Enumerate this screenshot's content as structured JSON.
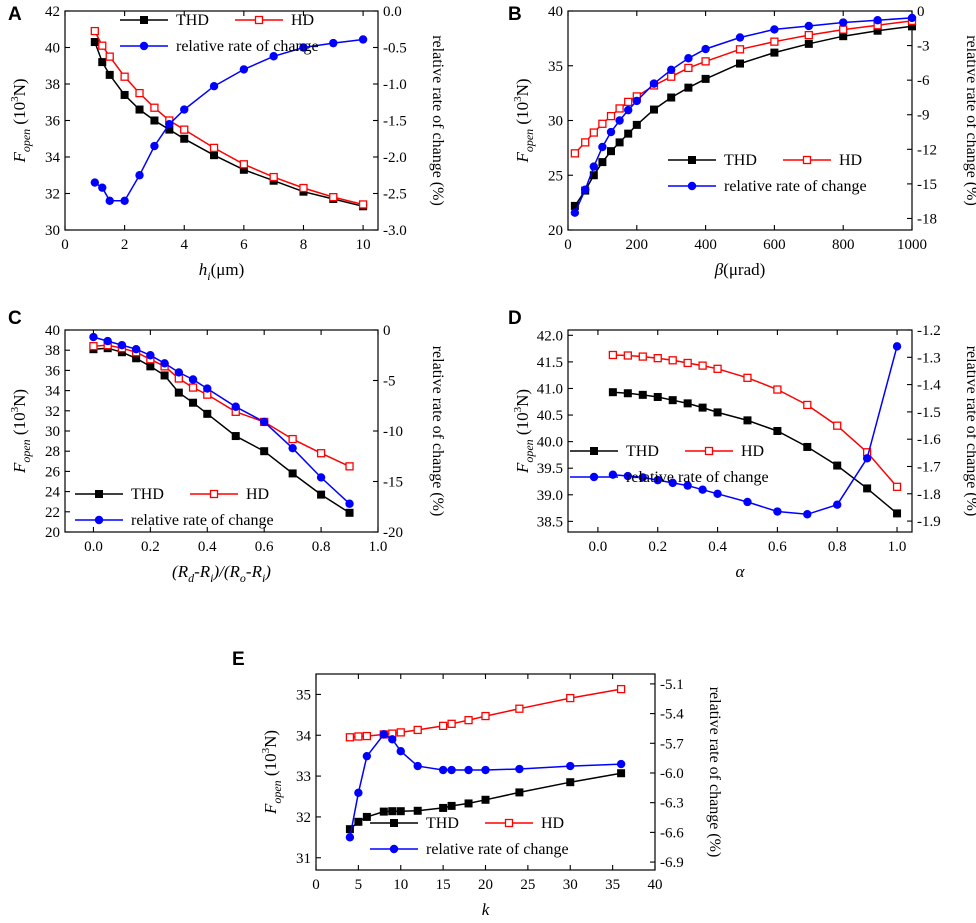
{
  "figure": {
    "colors": {
      "thd": "#000000",
      "hd": "#ff0000",
      "rate": "#0000ff",
      "axis": "#000000"
    },
    "ylabel_left": {
      "main": "F",
      "sub": "open",
      "pre": "(10",
      "sup": "3",
      "post": "N)"
    },
    "ylabel_right": "relative rate of change (%)"
  },
  "chart_data": [
    {
      "panel": "A",
      "type": "line",
      "xlabel": {
        "main": "h",
        "sub": "i",
        "post": "(μm)"
      },
      "xlim": [
        0,
        10.5
      ],
      "xticks": [
        0,
        2,
        4,
        6,
        8,
        10
      ],
      "ylim": [
        30,
        42
      ],
      "yticks": [
        30,
        32,
        34,
        36,
        38,
        40,
        42
      ],
      "y2lim": [
        -3.0,
        0.0
      ],
      "y2ticks": [
        "-3.0",
        "-2.5",
        "-2.0",
        "-1.5",
        "-1.0",
        "-0.5",
        "0.0"
      ],
      "legend": [
        {
          "key": "thd",
          "label": "THD"
        },
        {
          "key": "hd",
          "label": "HD"
        },
        {
          "key": "rate",
          "label": "relative rate of change"
        }
      ],
      "series": [
        {
          "key": "thd",
          "axis": "left",
          "x": [
            1,
            1.25,
            1.5,
            2,
            2.5,
            3,
            3.5,
            4,
            5,
            6,
            7,
            8,
            9,
            10
          ],
          "values": [
            40.3,
            39.2,
            38.5,
            37.4,
            36.6,
            36.0,
            35.5,
            35.0,
            34.1,
            33.3,
            32.7,
            32.1,
            31.7,
            31.3
          ]
        },
        {
          "key": "hd",
          "axis": "left",
          "x": [
            1,
            1.25,
            1.5,
            2,
            2.5,
            3,
            3.5,
            4,
            5,
            6,
            7,
            8,
            9,
            10
          ],
          "values": [
            40.9,
            40.1,
            39.5,
            38.4,
            37.5,
            36.7,
            36.0,
            35.5,
            34.5,
            33.6,
            32.9,
            32.3,
            31.8,
            31.4
          ]
        },
        {
          "key": "rate",
          "axis": "right",
          "x": [
            1,
            1.25,
            1.5,
            2,
            2.5,
            3,
            3.5,
            4,
            5,
            6,
            7,
            8,
            9,
            10
          ],
          "values": [
            -2.35,
            -2.42,
            -2.6,
            -2.6,
            -2.25,
            -1.85,
            -1.55,
            -1.35,
            -1.03,
            -0.8,
            -0.62,
            -0.5,
            -0.44,
            -0.39
          ]
        }
      ]
    },
    {
      "panel": "B",
      "type": "line",
      "xlabel": {
        "main": "β",
        "sub": "",
        "post": "(μrad)"
      },
      "xlim": [
        0,
        1000
      ],
      "xticks": [
        0,
        200,
        400,
        600,
        800,
        1000
      ],
      "ylim": [
        20,
        40
      ],
      "yticks": [
        20,
        25,
        30,
        35,
        40
      ],
      "y2lim": [
        -19,
        0
      ],
      "y2ticks": [
        "-18",
        "-15",
        "-12",
        "-9",
        "-6",
        "-3",
        "0"
      ],
      "legend": [
        {
          "key": "thd",
          "label": "THD"
        },
        {
          "key": "hd",
          "label": "HD"
        },
        {
          "key": "rate",
          "label": "relative rate of change"
        }
      ],
      "series": [
        {
          "key": "thd",
          "axis": "left",
          "x": [
            20,
            50,
            75,
            100,
            125,
            150,
            175,
            200,
            250,
            300,
            350,
            400,
            500,
            600,
            700,
            800,
            900,
            1000
          ],
          "values": [
            22.2,
            23.6,
            25.0,
            26.2,
            27.2,
            28.0,
            28.8,
            29.6,
            31.0,
            32.1,
            33.0,
            33.8,
            35.2,
            36.2,
            37.0,
            37.7,
            38.2,
            38.6
          ]
        },
        {
          "key": "hd",
          "axis": "left",
          "x": [
            20,
            50,
            75,
            100,
            125,
            150,
            175,
            200,
            250,
            300,
            350,
            400,
            500,
            600,
            700,
            800,
            900,
            1000
          ],
          "values": [
            27.0,
            28.0,
            28.9,
            29.7,
            30.4,
            31.1,
            31.7,
            32.2,
            33.2,
            34.0,
            34.8,
            35.4,
            36.5,
            37.2,
            37.8,
            38.3,
            38.7,
            39.1
          ]
        },
        {
          "key": "rate",
          "axis": "right",
          "x": [
            20,
            50,
            75,
            100,
            125,
            150,
            175,
            200,
            250,
            300,
            350,
            400,
            500,
            600,
            700,
            800,
            900,
            1000
          ],
          "values": [
            -17.5,
            -15.5,
            -13.5,
            -11.8,
            -10.5,
            -9.5,
            -8.6,
            -7.8,
            -6.3,
            -5.1,
            -4.1,
            -3.3,
            -2.3,
            -1.6,
            -1.3,
            -1.0,
            -0.8,
            -0.6
          ]
        }
      ]
    },
    {
      "panel": "C",
      "type": "line",
      "xlabel": {
        "parts": [
          "(R",
          "d",
          "-R",
          "i",
          ")/(R",
          "o",
          "-R",
          "i",
          ")"
        ]
      },
      "xlim": [
        -0.1,
        1.0
      ],
      "xticks": [
        "0.0",
        "0.2",
        "0.4",
        "0.6",
        "0.8",
        "1.0"
      ],
      "ylim": [
        20,
        40
      ],
      "yticks": [
        20,
        22,
        24,
        26,
        28,
        30,
        32,
        34,
        36,
        38,
        40
      ],
      "y2lim": [
        -20,
        0
      ],
      "y2ticks": [
        "-20",
        "-15",
        "-10",
        "-5",
        "0"
      ],
      "legend": [
        {
          "key": "thd",
          "label": "THD"
        },
        {
          "key": "hd",
          "label": "HD"
        },
        {
          "key": "rate",
          "label": "relative rate of change"
        }
      ],
      "series": [
        {
          "key": "thd",
          "axis": "left",
          "x": [
            0,
            0.05,
            0.1,
            0.15,
            0.2,
            0.25,
            0.3,
            0.35,
            0.4,
            0.5,
            0.6,
            0.7,
            0.8,
            0.9
          ],
          "values": [
            38.1,
            38.2,
            37.8,
            37.2,
            36.4,
            35.5,
            33.8,
            32.8,
            31.7,
            29.5,
            28.0,
            25.8,
            23.7,
            21.9
          ]
        },
        {
          "key": "hd",
          "axis": "left",
          "x": [
            0,
            0.05,
            0.1,
            0.15,
            0.2,
            0.25,
            0.3,
            0.35,
            0.4,
            0.5,
            0.6,
            0.7,
            0.8,
            0.9
          ],
          "values": [
            38.4,
            38.5,
            38.2,
            37.8,
            37.1,
            36.4,
            35.2,
            34.3,
            33.6,
            31.9,
            30.9,
            29.2,
            27.8,
            26.5
          ]
        },
        {
          "key": "rate",
          "axis": "right",
          "x": [
            0,
            0.05,
            0.1,
            0.15,
            0.2,
            0.25,
            0.3,
            0.35,
            0.4,
            0.5,
            0.6,
            0.7,
            0.8,
            0.9
          ],
          "values": [
            -0.7,
            -1.1,
            -1.5,
            -1.9,
            -2.5,
            -3.3,
            -4.2,
            -4.9,
            -5.8,
            -7.6,
            -9.1,
            -11.7,
            -14.6,
            -17.2
          ]
        }
      ]
    },
    {
      "panel": "D",
      "type": "line",
      "xlabel": {
        "main": "α",
        "sub": "",
        "post": ""
      },
      "xlim": [
        -0.1,
        1.05
      ],
      "xticks": [
        "0.0",
        "0.2",
        "0.4",
        "0.6",
        "0.8",
        "1.0"
      ],
      "ylim": [
        38.3,
        42.1
      ],
      "yticks": [
        "38.5",
        "39.0",
        "39.5",
        "40.0",
        "40.5",
        "41.0",
        "41.5",
        "42.0"
      ],
      "y2lim": [
        -1.94,
        -1.2
      ],
      "y2ticks": [
        "-1.9",
        "-1.8",
        "-1.7",
        "-1.6",
        "-1.5",
        "-1.4",
        "-1.3",
        "-1.2"
      ],
      "legend": [
        {
          "key": "thd",
          "label": "THD"
        },
        {
          "key": "hd",
          "label": "HD"
        },
        {
          "key": "rate",
          "label": "relative rate of change"
        }
      ],
      "series": [
        {
          "key": "thd",
          "axis": "left",
          "x": [
            0.05,
            0.1,
            0.15,
            0.2,
            0.25,
            0.3,
            0.35,
            0.4,
            0.5,
            0.6,
            0.7,
            0.8,
            0.9,
            1.0
          ],
          "values": [
            40.93,
            40.91,
            40.88,
            40.84,
            40.78,
            40.72,
            40.64,
            40.55,
            40.4,
            40.2,
            39.9,
            39.55,
            39.12,
            38.65
          ]
        },
        {
          "key": "hd",
          "axis": "left",
          "x": [
            0.05,
            0.1,
            0.15,
            0.2,
            0.25,
            0.3,
            0.35,
            0.4,
            0.5,
            0.6,
            0.7,
            0.8,
            0.9,
            1.0
          ],
          "values": [
            41.63,
            41.62,
            41.6,
            41.57,
            41.53,
            41.48,
            41.43,
            41.37,
            41.2,
            40.98,
            40.69,
            40.3,
            39.8,
            39.15
          ]
        },
        {
          "key": "rate",
          "axis": "right",
          "x": [
            0.05,
            0.1,
            0.15,
            0.2,
            0.25,
            0.3,
            0.35,
            0.4,
            0.5,
            0.6,
            0.7,
            0.8,
            0.9,
            1.0
          ],
          "values": [
            -1.73,
            -1.735,
            -1.74,
            -1.75,
            -1.76,
            -1.77,
            -1.785,
            -1.8,
            -1.83,
            -1.865,
            -1.875,
            -1.84,
            -1.67,
            -1.26
          ]
        }
      ]
    },
    {
      "panel": "E",
      "type": "line",
      "xlabel": {
        "main": "k",
        "sub": "",
        "post": ""
      },
      "xlim": [
        0,
        40
      ],
      "xticks": [
        0,
        5,
        10,
        15,
        20,
        25,
        30,
        35,
        40
      ],
      "ylim": [
        30.7,
        35.5
      ],
      "yticks": [
        31,
        32,
        33,
        34,
        35
      ],
      "y2lim": [
        -6.98,
        -5.0
      ],
      "y2ticks": [
        "-6.9",
        "-6.6",
        "-6.3",
        "-6.0",
        "-5.7",
        "-5.4",
        "-5.1"
      ],
      "legend": [
        {
          "key": "thd",
          "label": "THD"
        },
        {
          "key": "hd",
          "label": "HD"
        },
        {
          "key": "rate",
          "label": "relative rate of change"
        }
      ],
      "series": [
        {
          "key": "thd",
          "axis": "left",
          "x": [
            4,
            5,
            6,
            8,
            9,
            10,
            12,
            15,
            16,
            18,
            20,
            24,
            30,
            36
          ],
          "values": [
            31.7,
            31.88,
            32.0,
            32.13,
            32.14,
            32.14,
            32.15,
            32.22,
            32.27,
            32.33,
            32.42,
            32.6,
            32.85,
            33.07
          ]
        },
        {
          "key": "hd",
          "axis": "left",
          "x": [
            4,
            5,
            6,
            8,
            9,
            10,
            12,
            15,
            16,
            18,
            20,
            24,
            30,
            36
          ],
          "values": [
            33.95,
            33.97,
            33.98,
            34.02,
            34.04,
            34.07,
            34.13,
            34.23,
            34.28,
            34.37,
            34.47,
            34.65,
            34.91,
            35.13
          ]
        },
        {
          "key": "rate",
          "axis": "right",
          "x": [
            4,
            5,
            6,
            8,
            9,
            10,
            12,
            15,
            16,
            18,
            20,
            24,
            30,
            36
          ],
          "values": [
            -6.65,
            -6.2,
            -5.83,
            -5.61,
            -5.66,
            -5.78,
            -5.93,
            -5.97,
            -5.97,
            -5.97,
            -5.97,
            -5.96,
            -5.93,
            -5.91
          ]
        }
      ]
    }
  ]
}
